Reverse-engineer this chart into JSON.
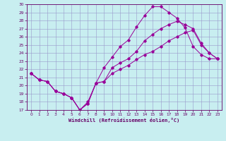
{
  "xlabel": "Windchill (Refroidissement éolien,°C)",
  "bg_color": "#c8eef0",
  "line_color": "#990099",
  "xlim": [
    -0.5,
    23.5
  ],
  "ylim": [
    17,
    30
  ],
  "xticks": [
    0,
    1,
    2,
    3,
    4,
    5,
    6,
    7,
    8,
    9,
    10,
    11,
    12,
    13,
    14,
    15,
    16,
    17,
    18,
    19,
    20,
    21,
    22,
    23
  ],
  "yticks": [
    17,
    18,
    19,
    20,
    21,
    22,
    23,
    24,
    25,
    26,
    27,
    28,
    29,
    30
  ],
  "series1_x": [
    0,
    1,
    2,
    3,
    4,
    5,
    6,
    7,
    8,
    9,
    10,
    11,
    12,
    13,
    14,
    15,
    16,
    17,
    18,
    19,
    20,
    21,
    22,
    23
  ],
  "series1_y": [
    21.5,
    20.7,
    20.5,
    19.3,
    19.0,
    18.5,
    17.0,
    18.0,
    20.3,
    22.2,
    23.5,
    24.8,
    25.6,
    27.2,
    28.6,
    29.7,
    29.7,
    29.0,
    28.3,
    27.1,
    24.8,
    23.8,
    23.3,
    23.3
  ],
  "series2_x": [
    0,
    1,
    2,
    3,
    4,
    5,
    6,
    7,
    8,
    9,
    10,
    11,
    12,
    13,
    14,
    15,
    16,
    17,
    18,
    19,
    20,
    21,
    22,
    23
  ],
  "series2_y": [
    21.5,
    20.7,
    20.5,
    19.3,
    19.0,
    18.5,
    17.0,
    17.8,
    20.3,
    20.5,
    22.2,
    22.8,
    23.3,
    24.2,
    25.5,
    26.3,
    27.0,
    27.5,
    27.9,
    27.5,
    27.0,
    25.2,
    24.0,
    23.3
  ],
  "series3_x": [
    0,
    1,
    2,
    3,
    4,
    5,
    6,
    7,
    8,
    9,
    10,
    11,
    12,
    13,
    14,
    15,
    16,
    17,
    18,
    19,
    20,
    21,
    22,
    23
  ],
  "series3_y": [
    21.5,
    20.7,
    20.5,
    19.3,
    19.0,
    18.5,
    17.0,
    17.8,
    20.3,
    20.5,
    21.5,
    22.0,
    22.5,
    23.2,
    23.8,
    24.2,
    24.8,
    25.5,
    26.0,
    26.5,
    26.8,
    25.0,
    24.0,
    23.3
  ]
}
